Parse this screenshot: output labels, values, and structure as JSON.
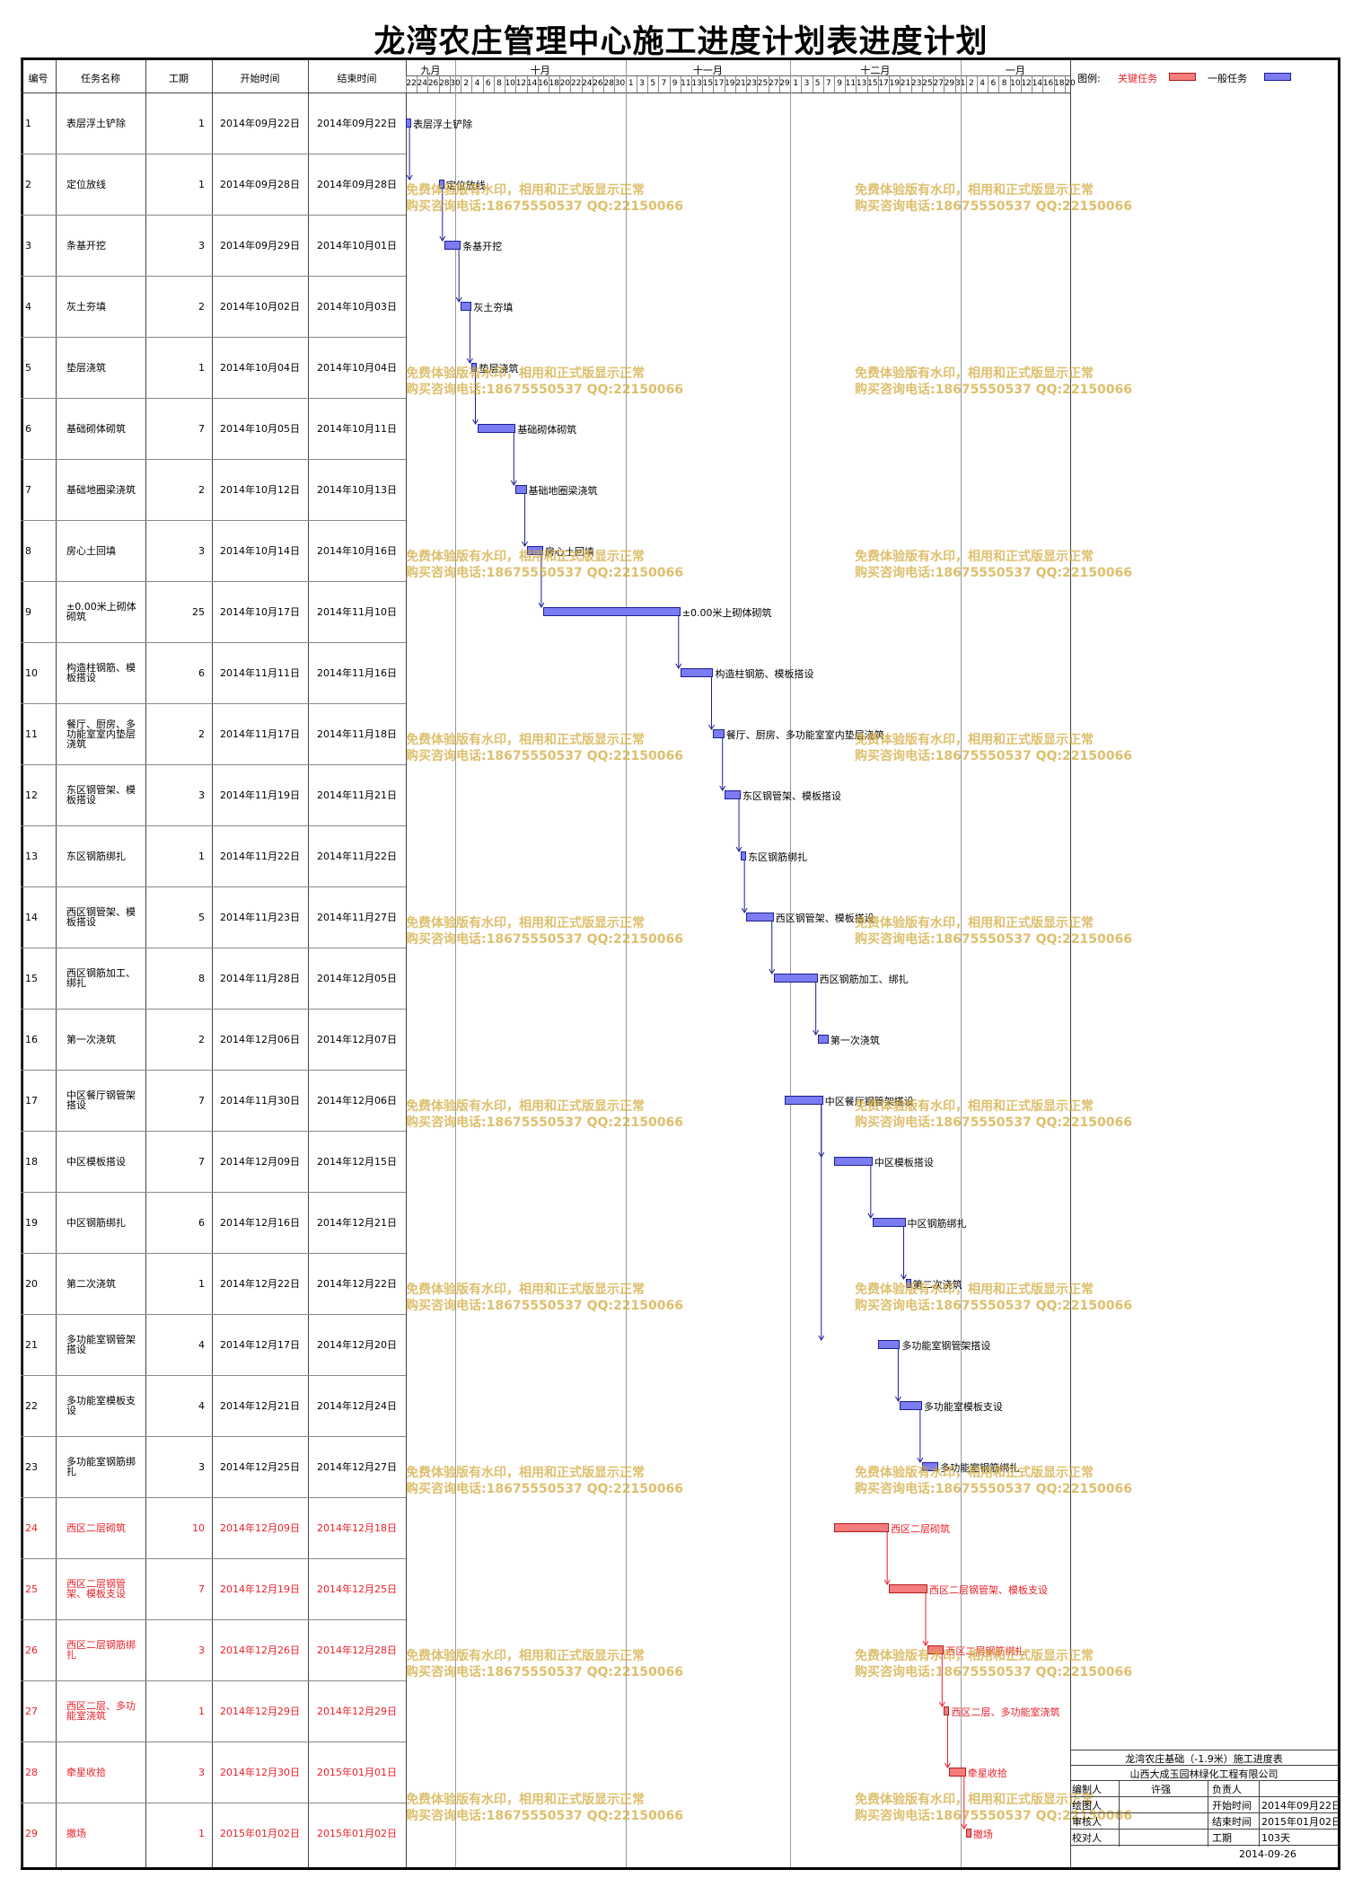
{
  "title": "龙湾农庄管理中心施工进度计划表进度计划",
  "columns": [
    "编号",
    "任务名称",
    "工期",
    "开始时间",
    "结束时间"
  ],
  "months": [
    "九月",
    "十月",
    "十一月",
    "十二月",
    "一月"
  ],
  "date_ticks": [
    "22",
    "24",
    "26",
    "28",
    "30",
    "2",
    "4",
    "6",
    "8",
    "10",
    "12",
    "14",
    "16",
    "18",
    "20",
    "22",
    "24",
    "26",
    "28",
    "30",
    "1",
    "3",
    "5",
    "7",
    "9",
    "11",
    "13",
    "15",
    "17",
    "19",
    "21",
    "23",
    "25",
    "27",
    "29",
    "1",
    "3",
    "5",
    "7",
    "9",
    "11",
    "13",
    "15",
    "17",
    "19",
    "21",
    "23",
    "25",
    "27",
    "29",
    "31",
    "2",
    "4",
    "6",
    "8",
    "10",
    "12",
    "14",
    "16",
    "18",
    "20"
  ],
  "legend": {
    "label": "图例:",
    "critical": "关键任务",
    "normal": "一般任务",
    "critical_color": "#f47c7c",
    "normal_color": "#7b7bf2"
  },
  "tasks": [
    {
      "id": "1",
      "name": "表层浮土铲除",
      "dur": "1",
      "start": "2014年09月22日",
      "end": "2014年09月22日",
      "crit": false,
      "s": 0,
      "d": 1
    },
    {
      "id": "2",
      "name": "定位放线",
      "dur": "1",
      "start": "2014年09月28日",
      "end": "2014年09月28日",
      "crit": false,
      "s": 6,
      "d": 1
    },
    {
      "id": "3",
      "name": "条基开挖",
      "dur": "3",
      "start": "2014年09月29日",
      "end": "2014年10月01日",
      "crit": false,
      "s": 7,
      "d": 3
    },
    {
      "id": "4",
      "name": "灰土夯填",
      "dur": "2",
      "start": "2014年10月02日",
      "end": "2014年10月03日",
      "crit": false,
      "s": 10,
      "d": 2
    },
    {
      "id": "5",
      "name": "垫层浇筑",
      "dur": "1",
      "start": "2014年10月04日",
      "end": "2014年10月04日",
      "crit": false,
      "s": 12,
      "d": 1
    },
    {
      "id": "6",
      "name": "基础砌体砌筑",
      "dur": "7",
      "start": "2014年10月05日",
      "end": "2014年10月11日",
      "crit": false,
      "s": 13,
      "d": 7
    },
    {
      "id": "7",
      "name": "基础地圈梁浇筑",
      "dur": "2",
      "start": "2014年10月12日",
      "end": "2014年10月13日",
      "crit": false,
      "s": 20,
      "d": 2
    },
    {
      "id": "8",
      "name": "房心土回填",
      "dur": "3",
      "start": "2014年10月14日",
      "end": "2014年10月16日",
      "crit": false,
      "s": 22,
      "d": 3
    },
    {
      "id": "9",
      "name": "±0.00米上砌体砌筑",
      "dur": "25",
      "start": "2014年10月17日",
      "end": "2014年11月10日",
      "crit": false,
      "s": 25,
      "d": 25
    },
    {
      "id": "10",
      "name": "构造柱钢筋、模板搭设",
      "dur": "6",
      "start": "2014年11月11日",
      "end": "2014年11月16日",
      "crit": false,
      "s": 50,
      "d": 6
    },
    {
      "id": "11",
      "name": "餐厅、厨房、多功能室室内垫层浇筑",
      "dur": "2",
      "start": "2014年11月17日",
      "end": "2014年11月18日",
      "crit": false,
      "s": 56,
      "d": 2
    },
    {
      "id": "12",
      "name": "东区钢管架、模板搭设",
      "dur": "3",
      "start": "2014年11月19日",
      "end": "2014年11月21日",
      "crit": false,
      "s": 58,
      "d": 3
    },
    {
      "id": "13",
      "name": "东区钢筋绑扎",
      "dur": "1",
      "start": "2014年11月22日",
      "end": "2014年11月22日",
      "crit": false,
      "s": 61,
      "d": 1
    },
    {
      "id": "14",
      "name": "西区钢管架、模板搭设",
      "dur": "5",
      "start": "2014年11月23日",
      "end": "2014年11月27日",
      "crit": false,
      "s": 62,
      "d": 5
    },
    {
      "id": "15",
      "name": "西区钢筋加工、绑扎",
      "dur": "8",
      "start": "2014年11月28日",
      "end": "2014年12月05日",
      "crit": false,
      "s": 67,
      "d": 8
    },
    {
      "id": "16",
      "name": "第一次浇筑",
      "dur": "2",
      "start": "2014年12月06日",
      "end": "2014年12月07日",
      "crit": false,
      "s": 75,
      "d": 2
    },
    {
      "id": "17",
      "name": "中区餐厅钢管架搭设",
      "dur": "7",
      "start": "2014年11月30日",
      "end": "2014年12月06日",
      "crit": false,
      "s": 69,
      "d": 7
    },
    {
      "id": "18",
      "name": "中区模板搭设",
      "dur": "7",
      "start": "2014年12月09日",
      "end": "2014年12月15日",
      "crit": false,
      "s": 78,
      "d": 7
    },
    {
      "id": "19",
      "name": "中区钢筋绑扎",
      "dur": "6",
      "start": "2014年12月16日",
      "end": "2014年12月21日",
      "crit": false,
      "s": 85,
      "d": 6
    },
    {
      "id": "20",
      "name": "第二次浇筑",
      "dur": "1",
      "start": "2014年12月22日",
      "end": "2014年12月22日",
      "crit": false,
      "s": 91,
      "d": 1
    },
    {
      "id": "21",
      "name": "多功能室钢管架搭设",
      "dur": "4",
      "start": "2014年12月17日",
      "end": "2014年12月20日",
      "crit": false,
      "s": 86,
      "d": 4
    },
    {
      "id": "22",
      "name": "多功能室模板支设",
      "dur": "4",
      "start": "2014年12月21日",
      "end": "2014年12月24日",
      "crit": false,
      "s": 90,
      "d": 4
    },
    {
      "id": "23",
      "name": "多功能室钢筋绑扎",
      "dur": "3",
      "start": "2014年12月25日",
      "end": "2014年12月27日",
      "crit": false,
      "s": 94,
      "d": 3
    },
    {
      "id": "24",
      "name": "西区二层砌筑",
      "dur": "10",
      "start": "2014年12月09日",
      "end": "2014年12月18日",
      "crit": true,
      "s": 78,
      "d": 10
    },
    {
      "id": "25",
      "name": "西区二层钢管架、模板支设",
      "dur": "7",
      "start": "2014年12月19日",
      "end": "2014年12月25日",
      "crit": true,
      "s": 88,
      "d": 7
    },
    {
      "id": "26",
      "name": "西区二层钢筋绑扎",
      "dur": "3",
      "start": "2014年12月26日",
      "end": "2014年12月28日",
      "crit": true,
      "s": 95,
      "d": 3
    },
    {
      "id": "27",
      "name": "西区二层、多功能室浇筑",
      "dur": "1",
      "start": "2014年12月29日",
      "end": "2014年12月29日",
      "crit": true,
      "s": 98,
      "d": 1
    },
    {
      "id": "28",
      "name": "牵星收拾",
      "dur": "3",
      "start": "2014年12月30日",
      "end": "2015年01月01日",
      "crit": true,
      "s": 99,
      "d": 3
    },
    {
      "id": "29",
      "name": "撤场",
      "dur": "1",
      "start": "2015年01月02日",
      "end": "2015年01月02日",
      "crit": true,
      "s": 102,
      "d": 1
    }
  ],
  "watermark": {
    "line1": "免费体验版有水印，相用和正式版显示正常",
    "line2": "购买咨询电话:18675550537 QQ:22150066"
  },
  "info": {
    "project": "龙湾农庄基础（-1.9米）施工进度表",
    "company": "山西大成玉园林绿化工程有限公司",
    "rows": [
      [
        "编制人",
        "许强",
        "负责人",
        ""
      ],
      [
        "绘图人",
        "",
        "开始时间",
        "2014年09月22日"
      ],
      [
        "审核人",
        "",
        "结束时间",
        "2015年01月02日"
      ],
      [
        "校对人",
        "",
        "工期",
        "103天"
      ]
    ],
    "date": "2014-09-26"
  }
}
